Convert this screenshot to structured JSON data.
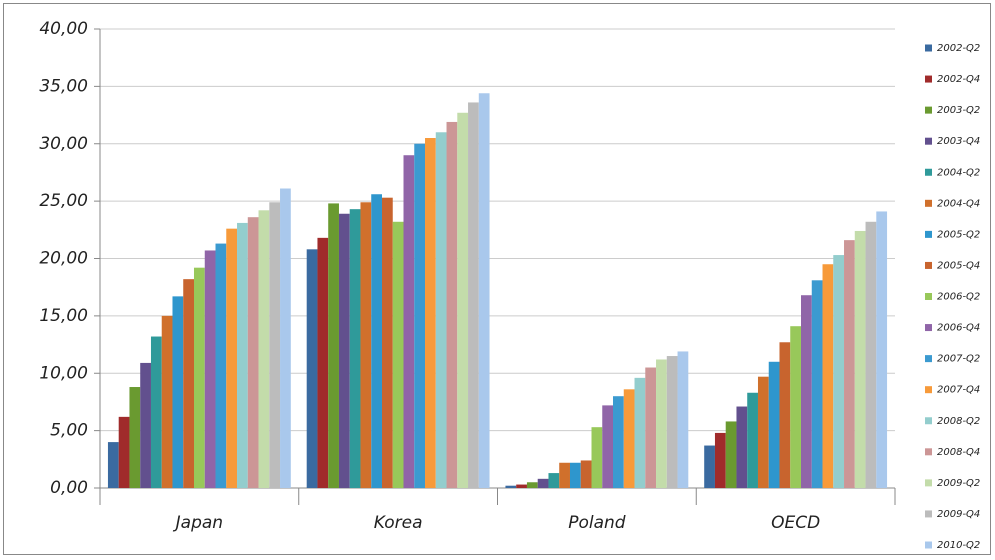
{
  "chart_data": {
    "type": "bar",
    "categories": [
      "Japan",
      "Korea",
      "Poland",
      "OECD"
    ],
    "ylim": [
      0,
      40
    ],
    "yticks": [
      {
        "value": 0,
        "label": "0,00"
      },
      {
        "value": 5,
        "label": "5,00"
      },
      {
        "value": 10,
        "label": "10,00"
      },
      {
        "value": 15,
        "label": "15,00"
      },
      {
        "value": 20,
        "label": "20,00"
      },
      {
        "value": 25,
        "label": "25,00"
      },
      {
        "value": 30,
        "label": "30,00"
      },
      {
        "value": 35,
        "label": "35,00"
      },
      {
        "value": 40,
        "label": "40,00"
      }
    ],
    "grid": true,
    "legend": "right",
    "series": [
      {
        "name": "2002-Q2",
        "color": "#3a6aa0",
        "values": [
          4.0,
          20.8,
          0.2,
          3.7
        ]
      },
      {
        "name": "2002-Q4",
        "color": "#a02b2b",
        "values": [
          6.2,
          21.8,
          0.3,
          4.8
        ]
      },
      {
        "name": "2003-Q2",
        "color": "#6a9a30",
        "values": [
          8.8,
          24.8,
          0.5,
          5.8
        ]
      },
      {
        "name": "2003-Q4",
        "color": "#62508e",
        "values": [
          10.9,
          23.9,
          0.8,
          7.1
        ]
      },
      {
        "name": "2004-Q2",
        "color": "#2f9a9a",
        "values": [
          13.2,
          24.3,
          1.3,
          8.3
        ]
      },
      {
        "name": "2004-Q4",
        "color": "#d0702c",
        "values": [
          15.0,
          24.9,
          2.2,
          9.7
        ]
      },
      {
        "name": "2005-Q2",
        "color": "#2e96cd",
        "values": [
          16.7,
          25.6,
          2.2,
          11.0
        ]
      },
      {
        "name": "2005-Q4",
        "color": "#c8642e",
        "values": [
          18.2,
          25.3,
          2.4,
          12.7
        ]
      },
      {
        "name": "2006-Q2",
        "color": "#98c85a",
        "values": [
          19.2,
          23.2,
          5.3,
          14.1
        ]
      },
      {
        "name": "2006-Q4",
        "color": "#9065a8",
        "values": [
          20.7,
          29.0,
          7.2,
          16.8
        ]
      },
      {
        "name": "2007-Q2",
        "color": "#3b9ad0",
        "values": [
          21.3,
          30.0,
          8.0,
          18.1
        ]
      },
      {
        "name": "2007-Q4",
        "color": "#f79a3a",
        "values": [
          22.6,
          30.5,
          8.6,
          19.5
        ]
      },
      {
        "name": "2008-Q2",
        "color": "#93cdcd",
        "values": [
          23.1,
          31.0,
          9.6,
          20.3
        ]
      },
      {
        "name": "2008-Q4",
        "color": "#cc9696",
        "values": [
          23.6,
          31.9,
          10.5,
          21.6
        ]
      },
      {
        "name": "2009-Q2",
        "color": "#c3dcaa",
        "values": [
          24.2,
          32.7,
          11.2,
          22.4
        ]
      },
      {
        "name": "2009-Q4",
        "color": "#bcbcbc",
        "values": [
          24.9,
          33.6,
          11.5,
          23.2
        ]
      },
      {
        "name": "2010-Q2",
        "color": "#a9c8ec",
        "values": [
          26.1,
          34.4,
          11.9,
          24.1
        ]
      }
    ]
  }
}
